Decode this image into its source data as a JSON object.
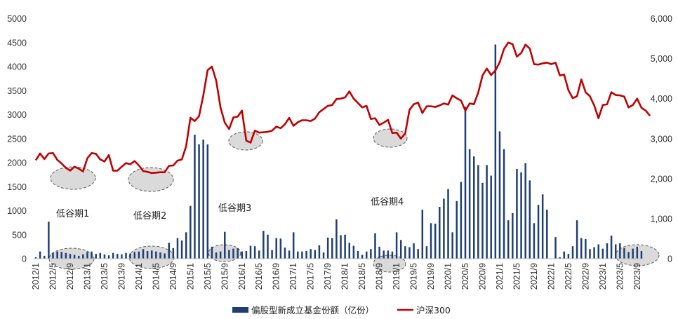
{
  "chart_data": {
    "type": "bar-line",
    "title": "",
    "left_axis": {
      "min": 0,
      "max": 5000,
      "ticks": [
        "0",
        "500",
        "1000",
        "1500",
        "2000",
        "2500",
        "3000",
        "3500",
        "4000",
        "4500",
        "5000"
      ]
    },
    "right_axis": {
      "min": 0,
      "max": 6000,
      "ticks": [
        "0",
        "1,000",
        "2,000",
        "3,000",
        "4,000",
        "5,000",
        "6,000"
      ]
    },
    "x_tick_labels": [
      "2012/1",
      "2012/5",
      "2012/9",
      "2013/1",
      "2013/5",
      "2013/9",
      "2014/1",
      "2014/5",
      "2014/9",
      "2015/1",
      "2015/5",
      "2015/9",
      "2016/1",
      "2016/5",
      "2016/9",
      "2017/1",
      "2017/5",
      "2017/9",
      "2018/1",
      "2018/5",
      "2018/9",
      "2019/1",
      "2019/5",
      "2019/9",
      "2020/1",
      "2020/5",
      "2020/9",
      "2021/1",
      "2021/5",
      "2021/9",
      "2022/1",
      "2022/5",
      "2022/9",
      "2023/1",
      "2023/5",
      "2023/9"
    ],
    "months_start": "2012/1",
    "bar_series": {
      "name": "偏股型新成立基金份额（亿份）",
      "color": "#1f3f74",
      "values": [
        30,
        150,
        60,
        770,
        120,
        150,
        140,
        120,
        100,
        80,
        60,
        90,
        140,
        150,
        100,
        120,
        90,
        70,
        120,
        100,
        90,
        120,
        110,
        140,
        150,
        200,
        160,
        170,
        150,
        130,
        110,
        330,
        220,
        430,
        380,
        550,
        1100,
        2580,
        2380,
        2480,
        2380,
        250,
        130,
        150,
        560,
        180,
        210,
        220,
        150,
        160,
        270,
        260,
        170,
        580,
        500,
        180,
        430,
        420,
        230,
        170,
        550,
        150,
        150,
        160,
        200,
        180,
        280,
        130,
        440,
        430,
        820,
        490,
        500,
        330,
        270,
        160,
        80,
        150,
        200,
        530,
        250,
        170,
        170,
        150,
        550,
        390,
        260,
        240,
        320,
        200,
        1020,
        260,
        740,
        730,
        1080,
        1250,
        1450,
        550,
        1200,
        1600,
        3160,
        2280,
        2130,
        1950,
        1580,
        1950,
        1730,
        4460,
        2650,
        2280,
        800,
        950,
        1870,
        1800,
        1990,
        1630,
        740,
        1120,
        1340,
        1020,
        0,
        450,
        30,
        150,
        100,
        260,
        800,
        430,
        410,
        200,
        240,
        300,
        210,
        320,
        480,
        300,
        320,
        220,
        140,
        210,
        250,
        160
      ]
    },
    "line_series": {
      "name": "沪深300",
      "color": "#c00000",
      "values": [
        2460,
        2630,
        2490,
        2630,
        2640,
        2470,
        2380,
        2270,
        2200,
        2300,
        2250,
        2180,
        2510,
        2640,
        2620,
        2480,
        2430,
        2590,
        2200,
        2200,
        2300,
        2390,
        2360,
        2440,
        2330,
        2190,
        2170,
        2140,
        2150,
        2160,
        2160,
        2320,
        2330,
        2450,
        2480,
        2810,
        3520,
        3440,
        3560,
        4080,
        4710,
        4800,
        4450,
        3780,
        3400,
        3240,
        3530,
        3550,
        3700,
        2950,
        2900,
        3200,
        3150,
        3160,
        3170,
        3200,
        3300,
        3260,
        3360,
        3520,
        3320,
        3410,
        3460,
        3460,
        3440,
        3500,
        3660,
        3740,
        3820,
        3840,
        3990,
        4000,
        4030,
        4180,
        4000,
        3890,
        3780,
        3820,
        3490,
        3510,
        3340,
        3400,
        3470,
        3140,
        3150,
        3000,
        3130,
        3720,
        3860,
        3900,
        3640,
        3810,
        3810,
        3790,
        3830,
        3880,
        3850,
        4080,
        4010,
        3950,
        3700,
        3880,
        3860,
        4150,
        4580,
        4750,
        4590,
        4700,
        4910,
        5240,
        5400,
        5360,
        5050,
        5140,
        5350,
        5250,
        4860,
        4850,
        4880,
        4900,
        4860,
        4900,
        4580,
        4600,
        4210,
        4010,
        4060,
        4480,
        4160,
        4060,
        3830,
        3510,
        3840,
        3860,
        4160,
        4090,
        4080,
        4050,
        3780,
        3840,
        4000,
        3770,
        3700,
        3570
      ]
    },
    "annotations": [
      "低谷期1",
      "低谷期2",
      "低谷期3",
      "低谷期4"
    ],
    "legend": {
      "position": "bottom-center"
    }
  }
}
